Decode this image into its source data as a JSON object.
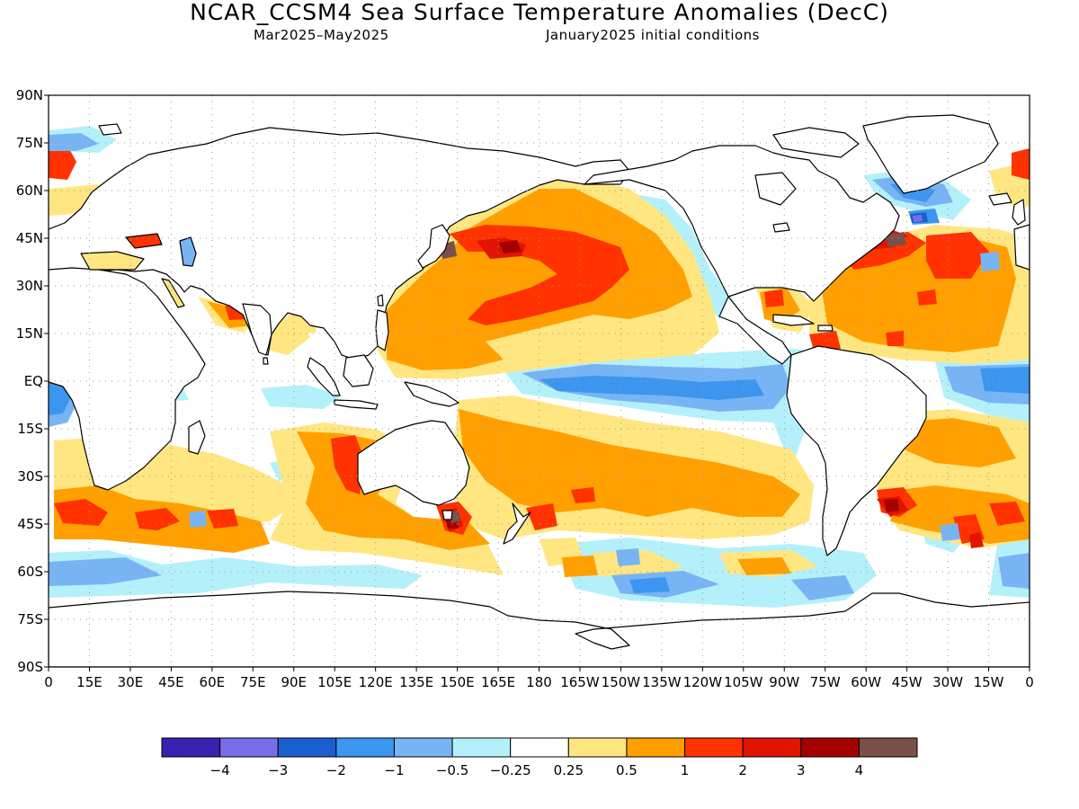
{
  "title": "NCAR_CCSM4 Sea Surface Temperature Anomalies (DecC)",
  "subtitle_period": "Mar2025–May2025",
  "subtitle_ic": "January2025 initial conditions",
  "lat_labels": [
    "90N",
    "75N",
    "60N",
    "45N",
    "30N",
    "15N",
    "EQ",
    "15S",
    "30S",
    "45S",
    "60S",
    "75S",
    "90S"
  ],
  "lon_labels": [
    "0",
    "15E",
    "30E",
    "45E",
    "60E",
    "75E",
    "90E",
    "105E",
    "120E",
    "135E",
    "150E",
    "165E",
    "180",
    "165W",
    "150W",
    "135W",
    "120W",
    "105W",
    "90W",
    "75W",
    "60W",
    "45W",
    "30W",
    "15W",
    "0"
  ],
  "colorbar": {
    "colors": [
      "#3a22b0",
      "#7a6ee8",
      "#1a5fcf",
      "#3c96f0",
      "#78b4f4",
      "#b4f0fa",
      "#ffffff",
      "#ffe680",
      "#ffa000",
      "#ff3200",
      "#e01400",
      "#a50000",
      "#7a5048"
    ],
    "labels": [
      "−4",
      "−3",
      "−2",
      "−1",
      "−0.5",
      "−0.25",
      "0.25",
      "0.5",
      "1",
      "2",
      "3",
      "4"
    ]
  },
  "colors": {
    "land_outline": "#000000",
    "grid": "#9a9a9a"
  }
}
